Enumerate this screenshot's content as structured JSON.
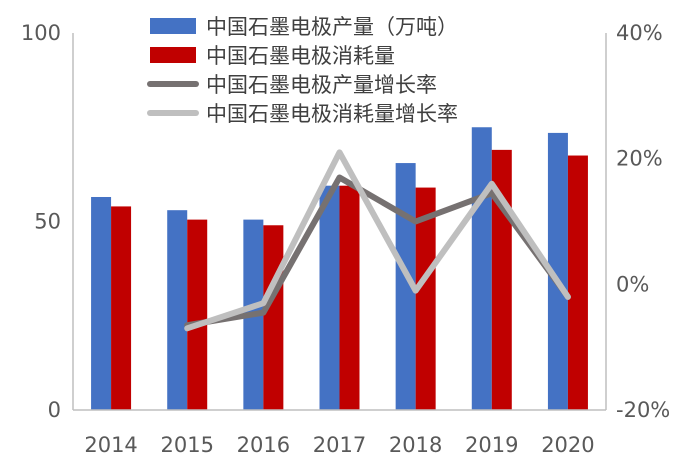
{
  "chart_data": {
    "type": "bar+line",
    "categories": [
      "2014",
      "2015",
      "2016",
      "2017",
      "2018",
      "2019",
      "2020"
    ],
    "y_left": {
      "min": 0,
      "max": 100,
      "ticks": [
        "0",
        "50",
        "100"
      ],
      "tick_values": [
        0,
        50,
        100
      ]
    },
    "y_right": {
      "min": -20,
      "max": 40,
      "ticks": [
        "-20%",
        "0%",
        "20%",
        "40%"
      ],
      "tick_values": [
        -20,
        0,
        20,
        40
      ]
    },
    "series": [
      {
        "name": "中国石墨电极产量（万吨）",
        "kind": "bar",
        "axis": "left",
        "color": "#4472C4",
        "values": [
          56.5,
          53,
          50.5,
          59.5,
          65.5,
          75,
          73.5
        ]
      },
      {
        "name": "中国石墨电极消耗量",
        "kind": "bar",
        "axis": "left",
        "color": "#C00000",
        "values": [
          54,
          50.5,
          49,
          59.5,
          59,
          69,
          67.5
        ]
      },
      {
        "name": "中国石墨电极产量增长率",
        "kind": "line",
        "axis": "right",
        "color": "#767171",
        "values": [
          null,
          -6.5,
          -4.5,
          17,
          10,
          14.5,
          -2
        ]
      },
      {
        "name": "中国石墨电极消耗量增长率",
        "kind": "line",
        "axis": "right",
        "color": "#BFBFBF",
        "values": [
          null,
          -7,
          -3,
          21,
          -1,
          16,
          -2
        ]
      }
    ],
    "legend_position": "top",
    "grid": false
  }
}
